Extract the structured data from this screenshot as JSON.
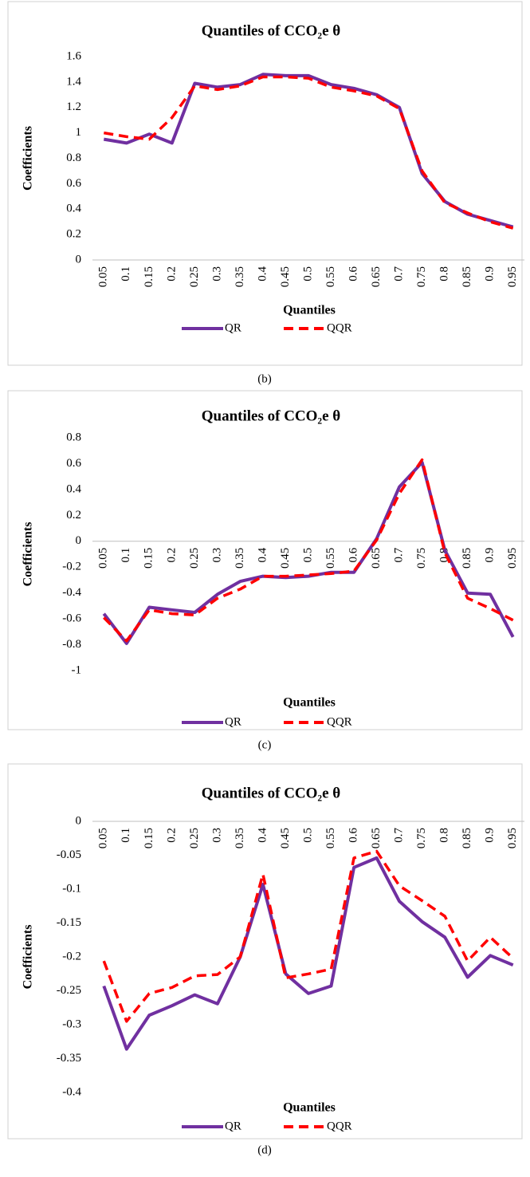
{
  "chart_data": [
    {
      "type": "line",
      "title": "Quantiles of CCO₂e θ",
      "x_label": "Quantiles",
      "y_label": "Coefficients",
      "caption": "(b)",
      "categories": [
        "0.05",
        "0.1",
        "0.15",
        "0.2",
        "0.25",
        "0.3",
        "0.35",
        "0.4",
        "0.45",
        "0.5",
        "0.55",
        "0.6",
        "0.65",
        "0.7",
        "0.75",
        "0.8",
        "0.85",
        "0.9",
        "0.95"
      ],
      "series": [
        {
          "name": "QR",
          "color": "#7030a0",
          "dashed": false,
          "values": [
            0.95,
            0.92,
            0.99,
            0.92,
            1.39,
            1.36,
            1.38,
            1.46,
            1.45,
            1.45,
            1.38,
            1.35,
            1.3,
            1.2,
            0.68,
            0.46,
            0.36,
            0.31,
            0.26
          ]
        },
        {
          "name": "QQR",
          "color": "#ff0000",
          "dashed": true,
          "values": [
            1.0,
            0.97,
            0.95,
            1.12,
            1.37,
            1.34,
            1.37,
            1.44,
            1.44,
            1.43,
            1.36,
            1.33,
            1.29,
            1.19,
            0.7,
            0.45,
            0.37,
            0.3,
            0.25
          ]
        }
      ],
      "ylim": [
        0,
        1.6
      ],
      "yticks": [
        0,
        0.2,
        0.4,
        0.6,
        0.8,
        1,
        1.2,
        1.4,
        1.6
      ],
      "grid": false
    },
    {
      "type": "line",
      "title": "Quantiles of CCO₂e θ",
      "x_label": "Quantiles",
      "y_label": "Coefficients",
      "caption": "(c)",
      "categories": [
        "0.05",
        "0.1",
        "0.15",
        "0.2",
        "0.25",
        "0.3",
        "0.35",
        "0.4",
        "0.45",
        "0.5",
        "0.55",
        "0.6",
        "0.65",
        "0.7",
        "0.75",
        "0.8",
        "0.85",
        "0.9",
        "0.95"
      ],
      "series": [
        {
          "name": "QR",
          "color": "#7030a0",
          "dashed": false,
          "values": [
            -0.56,
            -0.79,
            -0.51,
            -0.53,
            -0.55,
            -0.41,
            -0.31,
            -0.27,
            -0.28,
            -0.27,
            -0.24,
            -0.24,
            0.02,
            0.42,
            0.61,
            -0.07,
            -0.4,
            -0.41,
            -0.74
          ]
        },
        {
          "name": "QQR",
          "color": "#ff0000",
          "dashed": true,
          "values": [
            -0.59,
            -0.77,
            -0.53,
            -0.56,
            -0.57,
            -0.44,
            -0.37,
            -0.27,
            -0.27,
            -0.26,
            -0.25,
            -0.23,
            0.01,
            0.37,
            0.63,
            -0.09,
            -0.44,
            -0.52,
            -0.61
          ]
        }
      ],
      "ylim": [
        -1,
        0.8
      ],
      "yticks": [
        -1,
        -0.8,
        -0.6,
        -0.4,
        -0.2,
        0,
        0.2,
        0.4,
        0.6,
        0.8
      ],
      "grid": false
    },
    {
      "type": "line",
      "title": "Quantiles of CCO₂e θ",
      "x_label": "Quantiles",
      "y_label": "Coefficients",
      "caption": "(d)",
      "categories": [
        "0.05",
        "0.1",
        "0.15",
        "0.2",
        "0.25",
        "0.3",
        "0.35",
        "0.4",
        "0.45",
        "0.5",
        "0.55",
        "0.6",
        "0.65",
        "0.7",
        "0.75",
        "0.8",
        "0.85",
        "0.9",
        "0.95"
      ],
      "series": [
        {
          "name": "QR",
          "color": "#7030a0",
          "dashed": false,
          "values": [
            -0.243,
            -0.336,
            -0.286,
            -0.272,
            -0.256,
            -0.269,
            -0.2,
            -0.093,
            -0.225,
            -0.254,
            -0.243,
            -0.068,
            -0.054,
            -0.118,
            -0.148,
            -0.171,
            -0.23,
            -0.198,
            -0.212
          ]
        },
        {
          "name": "QQR",
          "color": "#ff0000",
          "dashed": true,
          "values": [
            -0.206,
            -0.295,
            -0.254,
            -0.245,
            -0.228,
            -0.226,
            -0.2,
            -0.078,
            -0.231,
            -0.225,
            -0.218,
            -0.054,
            -0.044,
            -0.095,
            -0.117,
            -0.14,
            -0.206,
            -0.171,
            -0.202
          ]
        }
      ],
      "ylim": [
        -0.4,
        0
      ],
      "yticks": [
        -0.4,
        -0.35,
        -0.3,
        -0.25,
        -0.2,
        -0.15,
        -0.1,
        -0.05,
        0
      ],
      "grid": false
    }
  ]
}
